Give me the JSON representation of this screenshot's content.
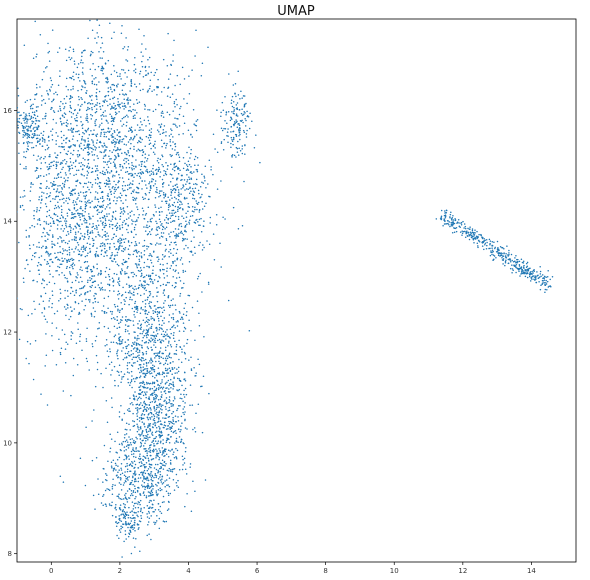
{
  "chart_data": {
    "type": "scatter",
    "title": "UMAP",
    "xlabel": "",
    "ylabel": "",
    "xlim": [
      -1.0,
      15.3
    ],
    "ylim": [
      7.85,
      17.65
    ],
    "xticks": [
      0,
      2,
      4,
      6,
      8,
      10,
      12,
      14
    ],
    "yticks": [
      8,
      10,
      12,
      14,
      16
    ],
    "grid": false,
    "legend": "none",
    "marker_color": "#1f77b4",
    "series": [
      {
        "clusters": [
          {
            "cx": 1.6,
            "cy": 15.7,
            "sx": 1.2,
            "sy": 0.85,
            "n": 1100
          },
          {
            "cx": 0.6,
            "cy": 13.8,
            "sx": 0.9,
            "sy": 1.1,
            "n": 1000
          },
          {
            "cx": 2.4,
            "cy": 13.9,
            "sx": 1.0,
            "sy": 1.0,
            "n": 700
          },
          {
            "cx": 3.8,
            "cy": 14.3,
            "sx": 0.45,
            "sy": 0.6,
            "n": 300
          },
          {
            "cx": 5.4,
            "cy": 15.7,
            "sx": 0.2,
            "sy": 0.35,
            "n": 150
          },
          {
            "cx": -0.6,
            "cy": 15.7,
            "sx": 0.2,
            "sy": 0.2,
            "n": 120
          },
          {
            "cx": 2.9,
            "cy": 11.8,
            "sx": 0.6,
            "sy": 0.75,
            "n": 700
          },
          {
            "cx": 3.1,
            "cy": 10.4,
            "sx": 0.5,
            "sy": 0.6,
            "n": 550
          },
          {
            "cx": 2.5,
            "cy": 9.3,
            "sx": 0.55,
            "sy": 0.45,
            "n": 500
          },
          {
            "cx": 2.3,
            "cy": 8.6,
            "sx": 0.2,
            "sy": 0.15,
            "n": 80
          }
        ],
        "line_segments": [
          {
            "x0": 11.4,
            "y0": 14.1,
            "x1": 14.5,
            "y1": 12.85,
            "n": 420,
            "width": 0.07
          }
        ]
      }
    ]
  }
}
